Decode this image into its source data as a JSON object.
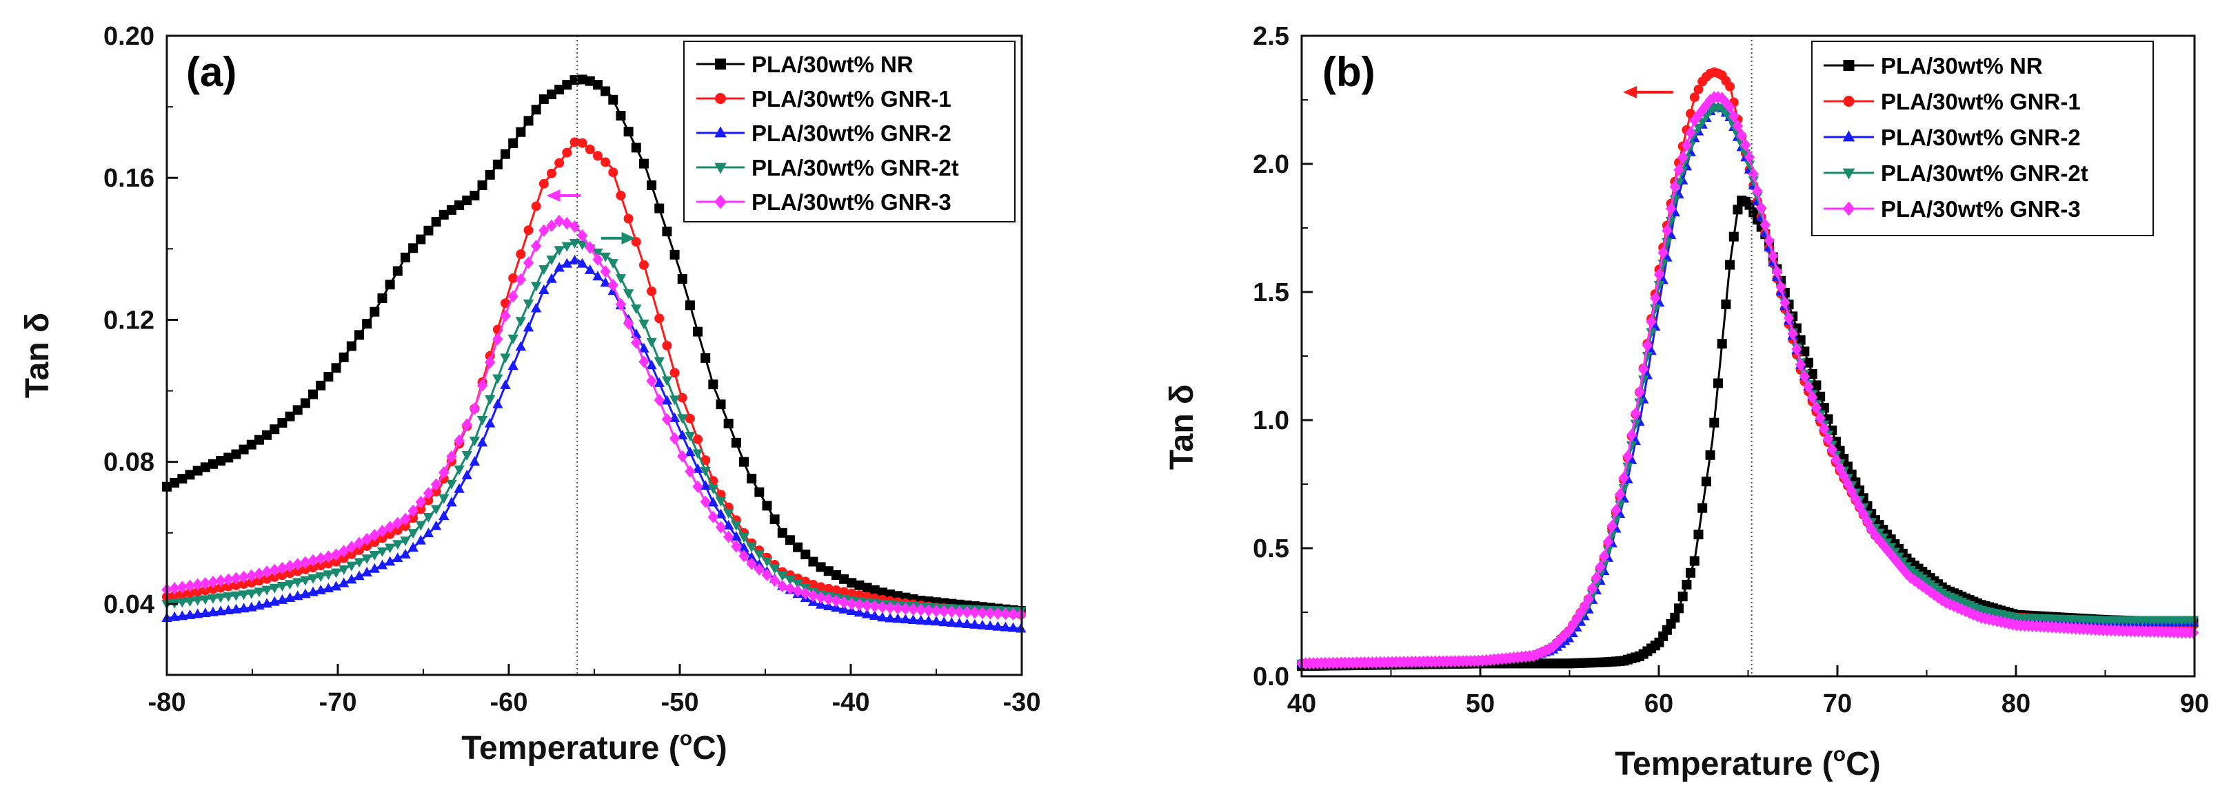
{
  "chart_data": [
    {
      "type": "line",
      "panel_label": "(a)",
      "xlabel_main": "Temperature (",
      "xlabel_sup": "o",
      "xlabel_unit": "C)",
      "ylabel": "Tan δ",
      "xlim": [
        -80,
        -30
      ],
      "ylim": [
        0.02,
        0.2
      ],
      "xticks": [
        -80,
        -70,
        -60,
        -50,
        -40,
        -30
      ],
      "yticks": [
        0.04,
        0.08,
        0.12,
        0.16,
        0.2
      ],
      "ytick_labels": [
        "0.04",
        "0.08",
        "0.12",
        "0.16",
        "0.20"
      ],
      "legend_position": "top-right",
      "reference_line_x": -56,
      "arrows": [
        {
          "x_from": -55.8,
          "x_to": -57.8,
          "y": 0.155,
          "color": "#ff33ff"
        },
        {
          "x_from": -54.6,
          "x_to": -52.6,
          "y": 0.143,
          "color": "#1a8a6e"
        }
      ],
      "series": [
        {
          "name": "PLA/30wt% NR",
          "color": "#000000",
          "marker": "square",
          "x": [
            -80,
            -78,
            -76,
            -74,
            -72,
            -70,
            -68,
            -66,
            -64,
            -62,
            -60,
            -58,
            -56,
            -55,
            -54,
            -52,
            -50,
            -48,
            -46,
            -44,
            -42,
            -40,
            -38,
            -36,
            -34,
            -32,
            -30
          ],
          "y": [
            0.073,
            0.078,
            0.082,
            0.088,
            0.096,
            0.107,
            0.121,
            0.138,
            0.149,
            0.155,
            0.168,
            0.182,
            0.188,
            0.187,
            0.183,
            0.163,
            0.134,
            0.101,
            0.077,
            0.06,
            0.051,
            0.046,
            0.043,
            0.041,
            0.04,
            0.039,
            0.038
          ]
        },
        {
          "name": "PLA/30wt% GNR-1",
          "color": "#ff1a1a",
          "marker": "circle",
          "x": [
            -80,
            -75,
            -70,
            -66,
            -64,
            -62,
            -60,
            -58,
            -56,
            -54,
            -52,
            -50,
            -48,
            -46,
            -44,
            -42,
            -40,
            -38,
            -35,
            -30
          ],
          "y": [
            0.042,
            0.046,
            0.052,
            0.062,
            0.073,
            0.095,
            0.128,
            0.158,
            0.171,
            0.163,
            0.134,
            0.1,
            0.074,
            0.058,
            0.049,
            0.045,
            0.043,
            0.041,
            0.039,
            0.037
          ]
        },
        {
          "name": "PLA/30wt% GNR-2",
          "color": "#1a1aff",
          "marker": "triangle-up",
          "x": [
            -80,
            -75,
            -70,
            -66,
            -64,
            -62,
            -60,
            -58,
            -57,
            -56,
            -54,
            -52,
            -50,
            -48,
            -46,
            -44,
            -42,
            -40,
            -38,
            -35,
            -30
          ],
          "y": [
            0.036,
            0.039,
            0.045,
            0.054,
            0.063,
            0.08,
            0.104,
            0.128,
            0.135,
            0.137,
            0.129,
            0.111,
            0.089,
            0.068,
            0.054,
            0.045,
            0.04,
            0.038,
            0.036,
            0.035,
            0.033
          ]
        },
        {
          "name": "PLA/30wt% GNR-2t",
          "color": "#1a8a6e",
          "marker": "triangle-down",
          "x": [
            -80,
            -75,
            -70,
            -66,
            -64,
            -62,
            -60,
            -58,
            -57,
            -56,
            -54,
            -52,
            -50,
            -48,
            -46,
            -44,
            -42,
            -40,
            -38,
            -35,
            -30
          ],
          "y": [
            0.04,
            0.043,
            0.049,
            0.058,
            0.068,
            0.086,
            0.112,
            0.134,
            0.14,
            0.142,
            0.137,
            0.118,
            0.094,
            0.072,
            0.057,
            0.048,
            0.043,
            0.041,
            0.04,
            0.039,
            0.038
          ]
        },
        {
          "name": "PLA/30wt% GNR-3",
          "color": "#ff33ff",
          "marker": "diamond",
          "x": [
            -80,
            -75,
            -70,
            -66,
            -64,
            -62,
            -60,
            -58,
            -57,
            -56,
            -54,
            -52,
            -50,
            -48,
            -46,
            -44,
            -42,
            -40,
            -38,
            -35,
            -30
          ],
          "y": [
            0.044,
            0.048,
            0.054,
            0.064,
            0.075,
            0.095,
            0.124,
            0.145,
            0.148,
            0.146,
            0.131,
            0.107,
            0.083,
            0.064,
            0.052,
            0.045,
            0.042,
            0.04,
            0.039,
            0.038,
            0.037
          ]
        }
      ]
    },
    {
      "type": "line",
      "panel_label": "(b)",
      "xlabel_main": "Temperature (",
      "xlabel_sup": "o",
      "xlabel_unit": "C)",
      "ylabel": "Tan δ",
      "xlim": [
        40,
        90
      ],
      "ylim": [
        0.0,
        2.5
      ],
      "xticks": [
        40,
        50,
        60,
        70,
        80,
        90
      ],
      "yticks": [
        0.0,
        0.5,
        1.0,
        1.5,
        2.0,
        2.5
      ],
      "ytick_labels": [
        "0.0",
        "0.5",
        "1.0",
        "1.5",
        "2.0",
        "2.5"
      ],
      "legend_position": "top-right",
      "reference_line_x": 65.2,
      "arrows": [
        {
          "x_from": 60.8,
          "x_to": 58.0,
          "y": 2.28,
          "color": "#ff1a1a"
        }
      ],
      "series": [
        {
          "name": "PLA/30wt% NR",
          "color": "#000000",
          "marker": "square",
          "x": [
            40,
            45,
            50,
            55,
            57,
            58,
            59,
            60,
            61,
            62,
            63,
            64,
            64.5,
            65,
            66,
            68,
            70,
            72,
            74,
            76,
            78,
            80,
            85,
            90
          ],
          "y": [
            0.04,
            0.045,
            0.05,
            0.05,
            0.055,
            0.06,
            0.08,
            0.13,
            0.24,
            0.45,
            0.92,
            1.62,
            1.86,
            1.85,
            1.72,
            1.3,
            0.9,
            0.62,
            0.45,
            0.34,
            0.28,
            0.24,
            0.22,
            0.21
          ]
        },
        {
          "name": "PLA/30wt% GNR-1",
          "color": "#ff1a1a",
          "marker": "circle",
          "x": [
            40,
            45,
            50,
            53,
            54,
            55,
            56,
            57,
            58,
            59,
            60,
            61,
            62,
            62.5,
            63,
            63.5,
            64,
            65,
            66,
            68,
            70,
            72,
            74,
            76,
            78,
            80,
            85,
            90
          ],
          "y": [
            0.05,
            0.055,
            0.06,
            0.08,
            0.11,
            0.18,
            0.29,
            0.47,
            0.75,
            1.14,
            1.58,
            1.97,
            2.26,
            2.33,
            2.36,
            2.35,
            2.3,
            2.0,
            1.72,
            1.18,
            0.82,
            0.56,
            0.4,
            0.31,
            0.25,
            0.23,
            0.21,
            0.2
          ]
        },
        {
          "name": "PLA/30wt% GNR-2",
          "color": "#1a1aff",
          "marker": "triangle-up",
          "x": [
            40,
            45,
            50,
            53,
            54,
            55,
            56,
            57,
            58,
            59,
            60,
            61,
            62,
            63,
            63.5,
            64,
            65,
            66,
            68,
            70,
            72,
            74,
            76,
            78,
            80,
            85,
            90
          ],
          "y": [
            0.05,
            0.055,
            0.06,
            0.08,
            0.1,
            0.15,
            0.25,
            0.42,
            0.68,
            1.02,
            1.45,
            1.85,
            2.1,
            2.22,
            2.22,
            2.18,
            2.0,
            1.72,
            1.2,
            0.84,
            0.58,
            0.41,
            0.31,
            0.25,
            0.22,
            0.21,
            0.21
          ]
        },
        {
          "name": "PLA/30wt% GNR-2t",
          "color": "#1a8a6e",
          "marker": "triangle-down",
          "x": [
            40,
            45,
            50,
            53,
            54,
            55,
            56,
            57,
            58,
            59,
            60,
            61,
            62,
            63,
            63.5,
            64,
            65,
            66,
            68,
            70,
            72,
            74,
            76,
            78,
            80,
            85,
            90
          ],
          "y": [
            0.05,
            0.055,
            0.06,
            0.08,
            0.11,
            0.17,
            0.27,
            0.45,
            0.72,
            1.1,
            1.52,
            1.9,
            2.12,
            2.22,
            2.22,
            2.18,
            2.02,
            1.74,
            1.21,
            0.85,
            0.59,
            0.42,
            0.32,
            0.26,
            0.23,
            0.22,
            0.22
          ]
        },
        {
          "name": "PLA/30wt% GNR-3",
          "color": "#ff33ff",
          "marker": "diamond",
          "x": [
            40,
            45,
            50,
            53,
            54,
            55,
            56,
            57,
            58,
            59,
            60,
            61,
            62,
            63,
            63.5,
            64,
            65,
            66,
            68,
            70,
            72,
            74,
            76,
            78,
            80,
            85,
            90
          ],
          "y": [
            0.05,
            0.055,
            0.06,
            0.08,
            0.11,
            0.18,
            0.29,
            0.48,
            0.76,
            1.14,
            1.56,
            1.95,
            2.17,
            2.26,
            2.26,
            2.22,
            2.05,
            1.75,
            1.2,
            0.83,
            0.56,
            0.39,
            0.29,
            0.23,
            0.2,
            0.18,
            0.17
          ]
        }
      ]
    }
  ]
}
